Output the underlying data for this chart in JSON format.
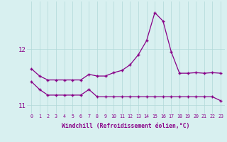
{
  "xlabel": "Windchill (Refroidissement éolien,°C)",
  "background_color": "#d8f0f0",
  "line_color": "#880088",
  "hours": [
    0,
    1,
    2,
    3,
    4,
    5,
    6,
    7,
    8,
    9,
    10,
    11,
    12,
    13,
    14,
    15,
    16,
    17,
    18,
    19,
    20,
    21,
    22,
    23
  ],
  "line1": [
    11.65,
    11.52,
    11.45,
    11.45,
    11.45,
    11.45,
    11.45,
    11.55,
    11.52,
    11.52,
    11.58,
    11.62,
    11.72,
    11.9,
    12.15,
    12.65,
    12.5,
    11.95,
    11.57,
    11.57,
    11.58,
    11.57,
    11.58,
    11.57
  ],
  "line2": [
    11.42,
    11.28,
    11.18,
    11.18,
    11.18,
    11.18,
    11.18,
    11.28,
    11.15,
    11.15,
    11.15,
    11.15,
    11.15,
    11.15,
    11.15,
    11.15,
    11.15,
    11.15,
    11.15,
    11.15,
    11.15,
    11.15,
    11.15,
    11.08
  ],
  "ylim": [
    10.85,
    12.85
  ],
  "yticks": [
    11,
    12
  ],
  "xticks": [
    0,
    1,
    2,
    3,
    4,
    5,
    6,
    7,
    8,
    9,
    10,
    11,
    12,
    13,
    14,
    15,
    16,
    17,
    18,
    19,
    20,
    21,
    22,
    23
  ]
}
